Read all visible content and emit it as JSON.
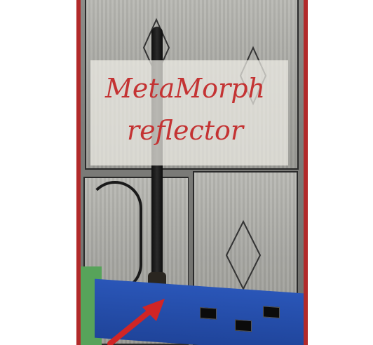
{
  "title": {
    "line1": "MetaMorph",
    "line2": "reflector"
  },
  "colors": {
    "frame": "#b22a2a",
    "title_text": "#c43333",
    "overlay": "rgba(240,238,232,0.72)",
    "board": "#1f449a",
    "arrow": "#d02525"
  },
  "icons": {
    "pointer": "arrow-icon"
  }
}
